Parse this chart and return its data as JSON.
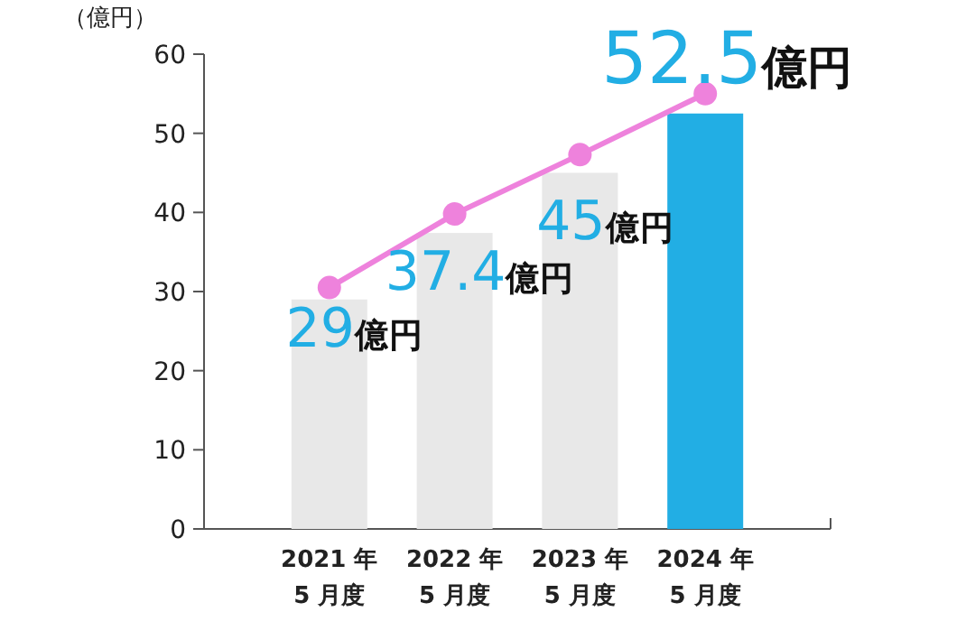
{
  "chart_data": {
    "type": "bar",
    "ylabel": "（億円）",
    "categories": [
      "2021 年\n5 月度",
      "2022 年\n5 月度",
      "2023 年\n5 月度",
      "2024 年\n5 月度"
    ],
    "ylim": [
      0,
      60
    ],
    "yticks": [
      0,
      10,
      20,
      30,
      40,
      50,
      60
    ],
    "grid": false,
    "series": [
      {
        "colors": [
          "#e8e8e8",
          "#e8e8e8",
          "#e8e8e8",
          "#22aee4"
        ],
        "values": [
          29,
          37.4,
          45,
          52.5
        ],
        "value_labels": [
          "29億円",
          "37.4億円",
          "45億円",
          "52.5億円"
        ]
      },
      {
        "type": "line",
        "color": "#ee82dc",
        "marker": "circle",
        "values": [
          30.5,
          39.8,
          47.3,
          55
        ]
      }
    ]
  }
}
